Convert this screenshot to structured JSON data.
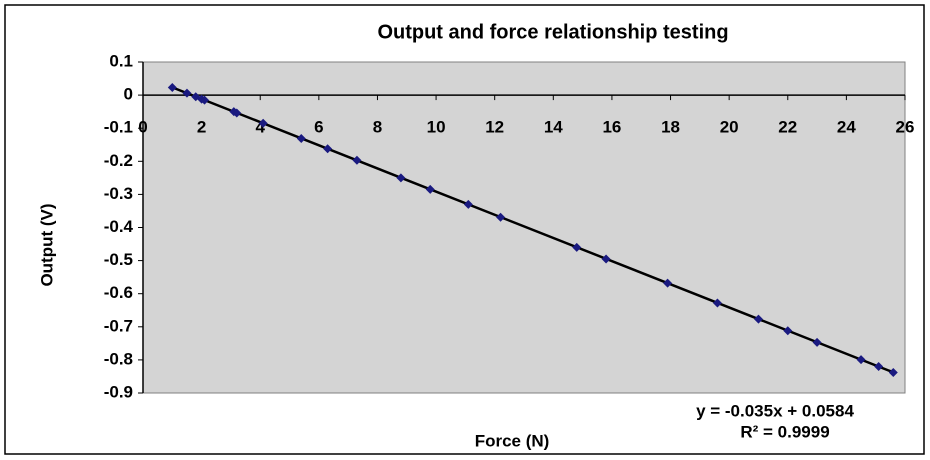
{
  "chart_data": {
    "type": "scatter",
    "title": "Output and force relationship testing",
    "x_label": "Force (N)",
    "y_label": "Output (V)",
    "series": [
      {
        "name": "Output",
        "color": "#1a1a80",
        "x": [
          1.0,
          1.5,
          1.8,
          2.0,
          2.1,
          3.1,
          3.2,
          4.1,
          5.4,
          6.3,
          7.3,
          8.8,
          9.8,
          11.1,
          12.2,
          14.8,
          15.8,
          17.9,
          19.6,
          21.0,
          22.0,
          23.0,
          24.5,
          25.1,
          25.6
        ],
        "values": [
          0.023,
          0.006,
          -0.005,
          -0.012,
          -0.015,
          -0.05,
          -0.054,
          -0.085,
          -0.131,
          -0.162,
          -0.197,
          -0.25,
          -0.285,
          -0.33,
          -0.369,
          -0.46,
          -0.495,
          -0.568,
          -0.628,
          -0.677,
          -0.712,
          -0.747,
          -0.799,
          -0.82,
          -0.838
        ]
      }
    ],
    "trendline": {
      "slope": -0.035,
      "intercept": 0.0584,
      "color": "#000000",
      "equation": "y = -0.035x + 0.0584",
      "r_squared_label": "R² = 0.9999"
    },
    "xlim": [
      0,
      26
    ],
    "xticks": [
      0,
      2,
      4,
      6,
      8,
      10,
      12,
      14,
      16,
      18,
      20,
      22,
      24,
      26
    ],
    "ylim": [
      -0.9,
      0.1
    ],
    "yticks": [
      0.1,
      0,
      -0.1,
      -0.2,
      -0.3,
      -0.4,
      -0.5,
      -0.6,
      -0.7,
      -0.8,
      -0.9
    ],
    "grid": false
  }
}
